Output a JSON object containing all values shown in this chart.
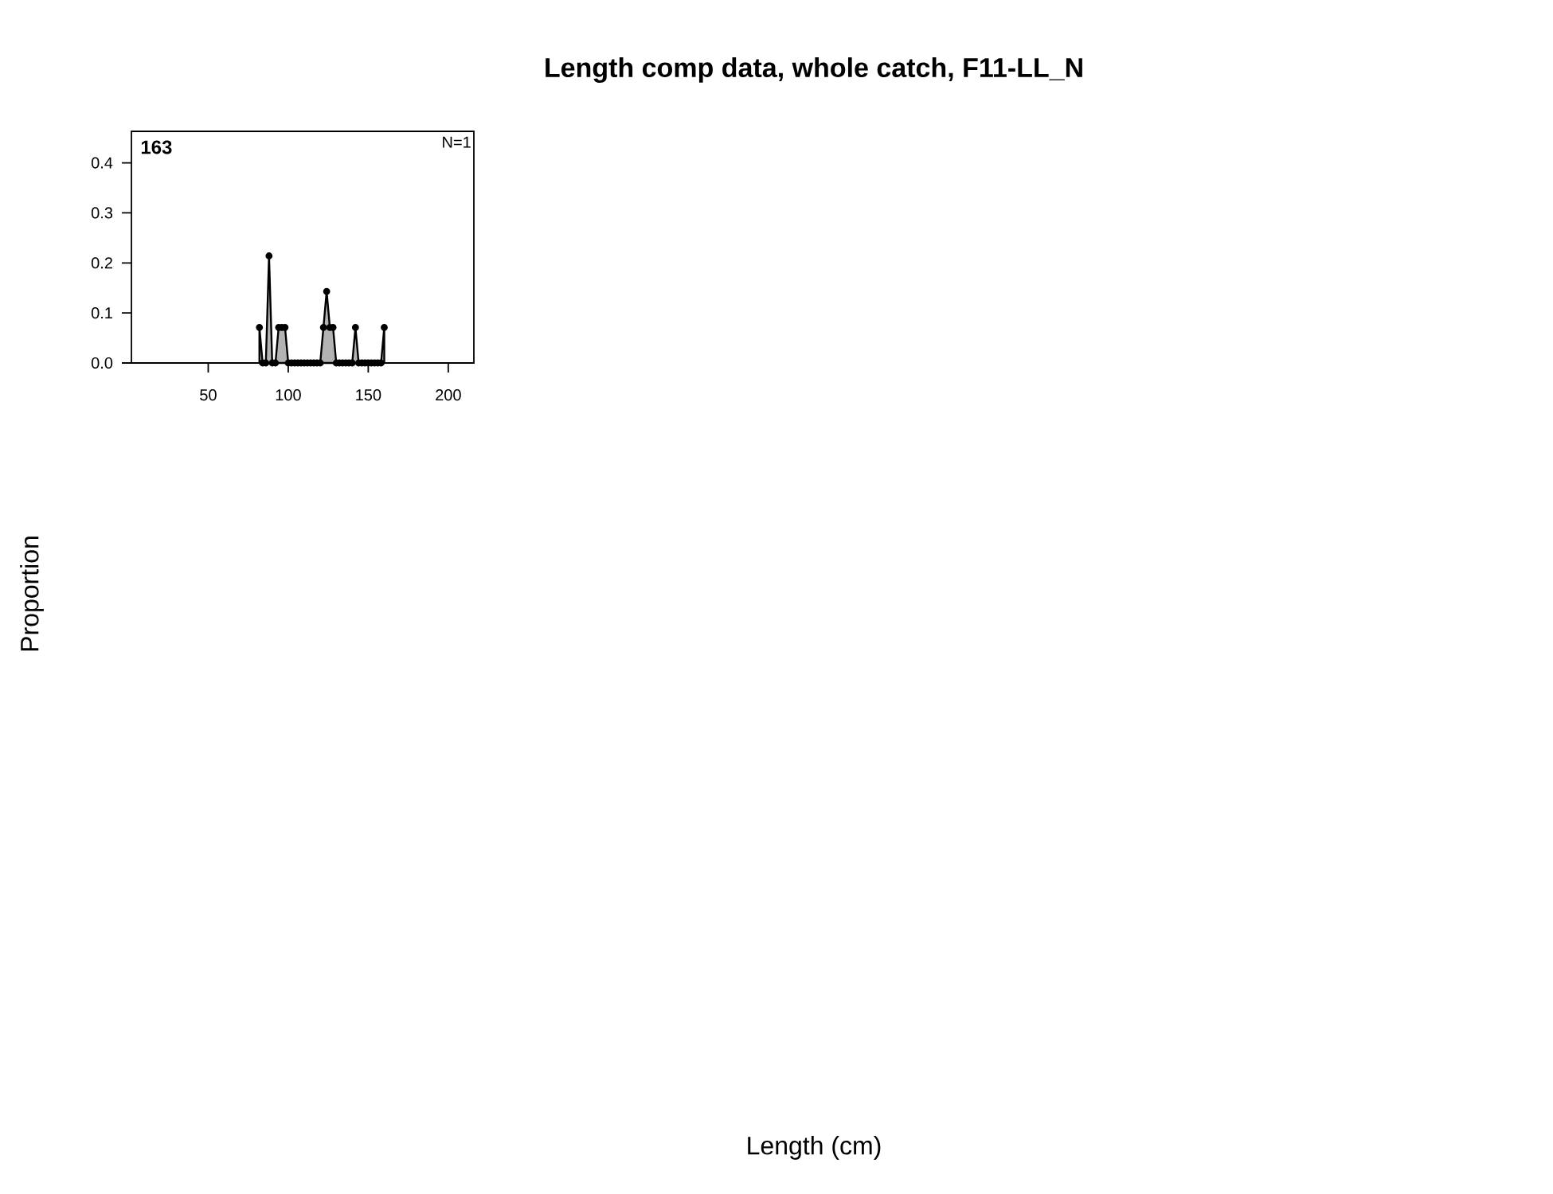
{
  "chart_data": {
    "type": "area",
    "title": "Length comp data, whole catch, F11-LL_N",
    "annotations": [
      "163",
      "N=1",
      "Length (cm)",
      "Proportion"
    ],
    "x": [
      82,
      84,
      86,
      88,
      90,
      92,
      94,
      96,
      98,
      100,
      102,
      104,
      106,
      108,
      110,
      112,
      114,
      116,
      118,
      120,
      122,
      124,
      126,
      128,
      130,
      132,
      134,
      136,
      138,
      140,
      142,
      144,
      146,
      148,
      150,
      152,
      154,
      156,
      158,
      160
    ],
    "series": [
      {
        "color": "#b3b3b3",
        "values": [
          0.071,
          0,
          0,
          0.214,
          0,
          0,
          0.071,
          0.071,
          0.071,
          0,
          0,
          0,
          0,
          0,
          0,
          0,
          0,
          0,
          0,
          0,
          0.071,
          0.143,
          0.071,
          0.071,
          0,
          0,
          0,
          0,
          0,
          0,
          0.071,
          0,
          0,
          0,
          0,
          0,
          0,
          0,
          0,
          0.071
        ]
      }
    ],
    "xlim": [
      2,
      216
    ],
    "ylim": [
      0,
      0.463
    ],
    "xticks": [
      50,
      100,
      150,
      200
    ],
    "yticks": [
      {
        "value": 0,
        "label": "0.0"
      },
      0.1,
      0.2,
      0.3,
      0.4
    ],
    "marker": "circle",
    "grid": false
  }
}
